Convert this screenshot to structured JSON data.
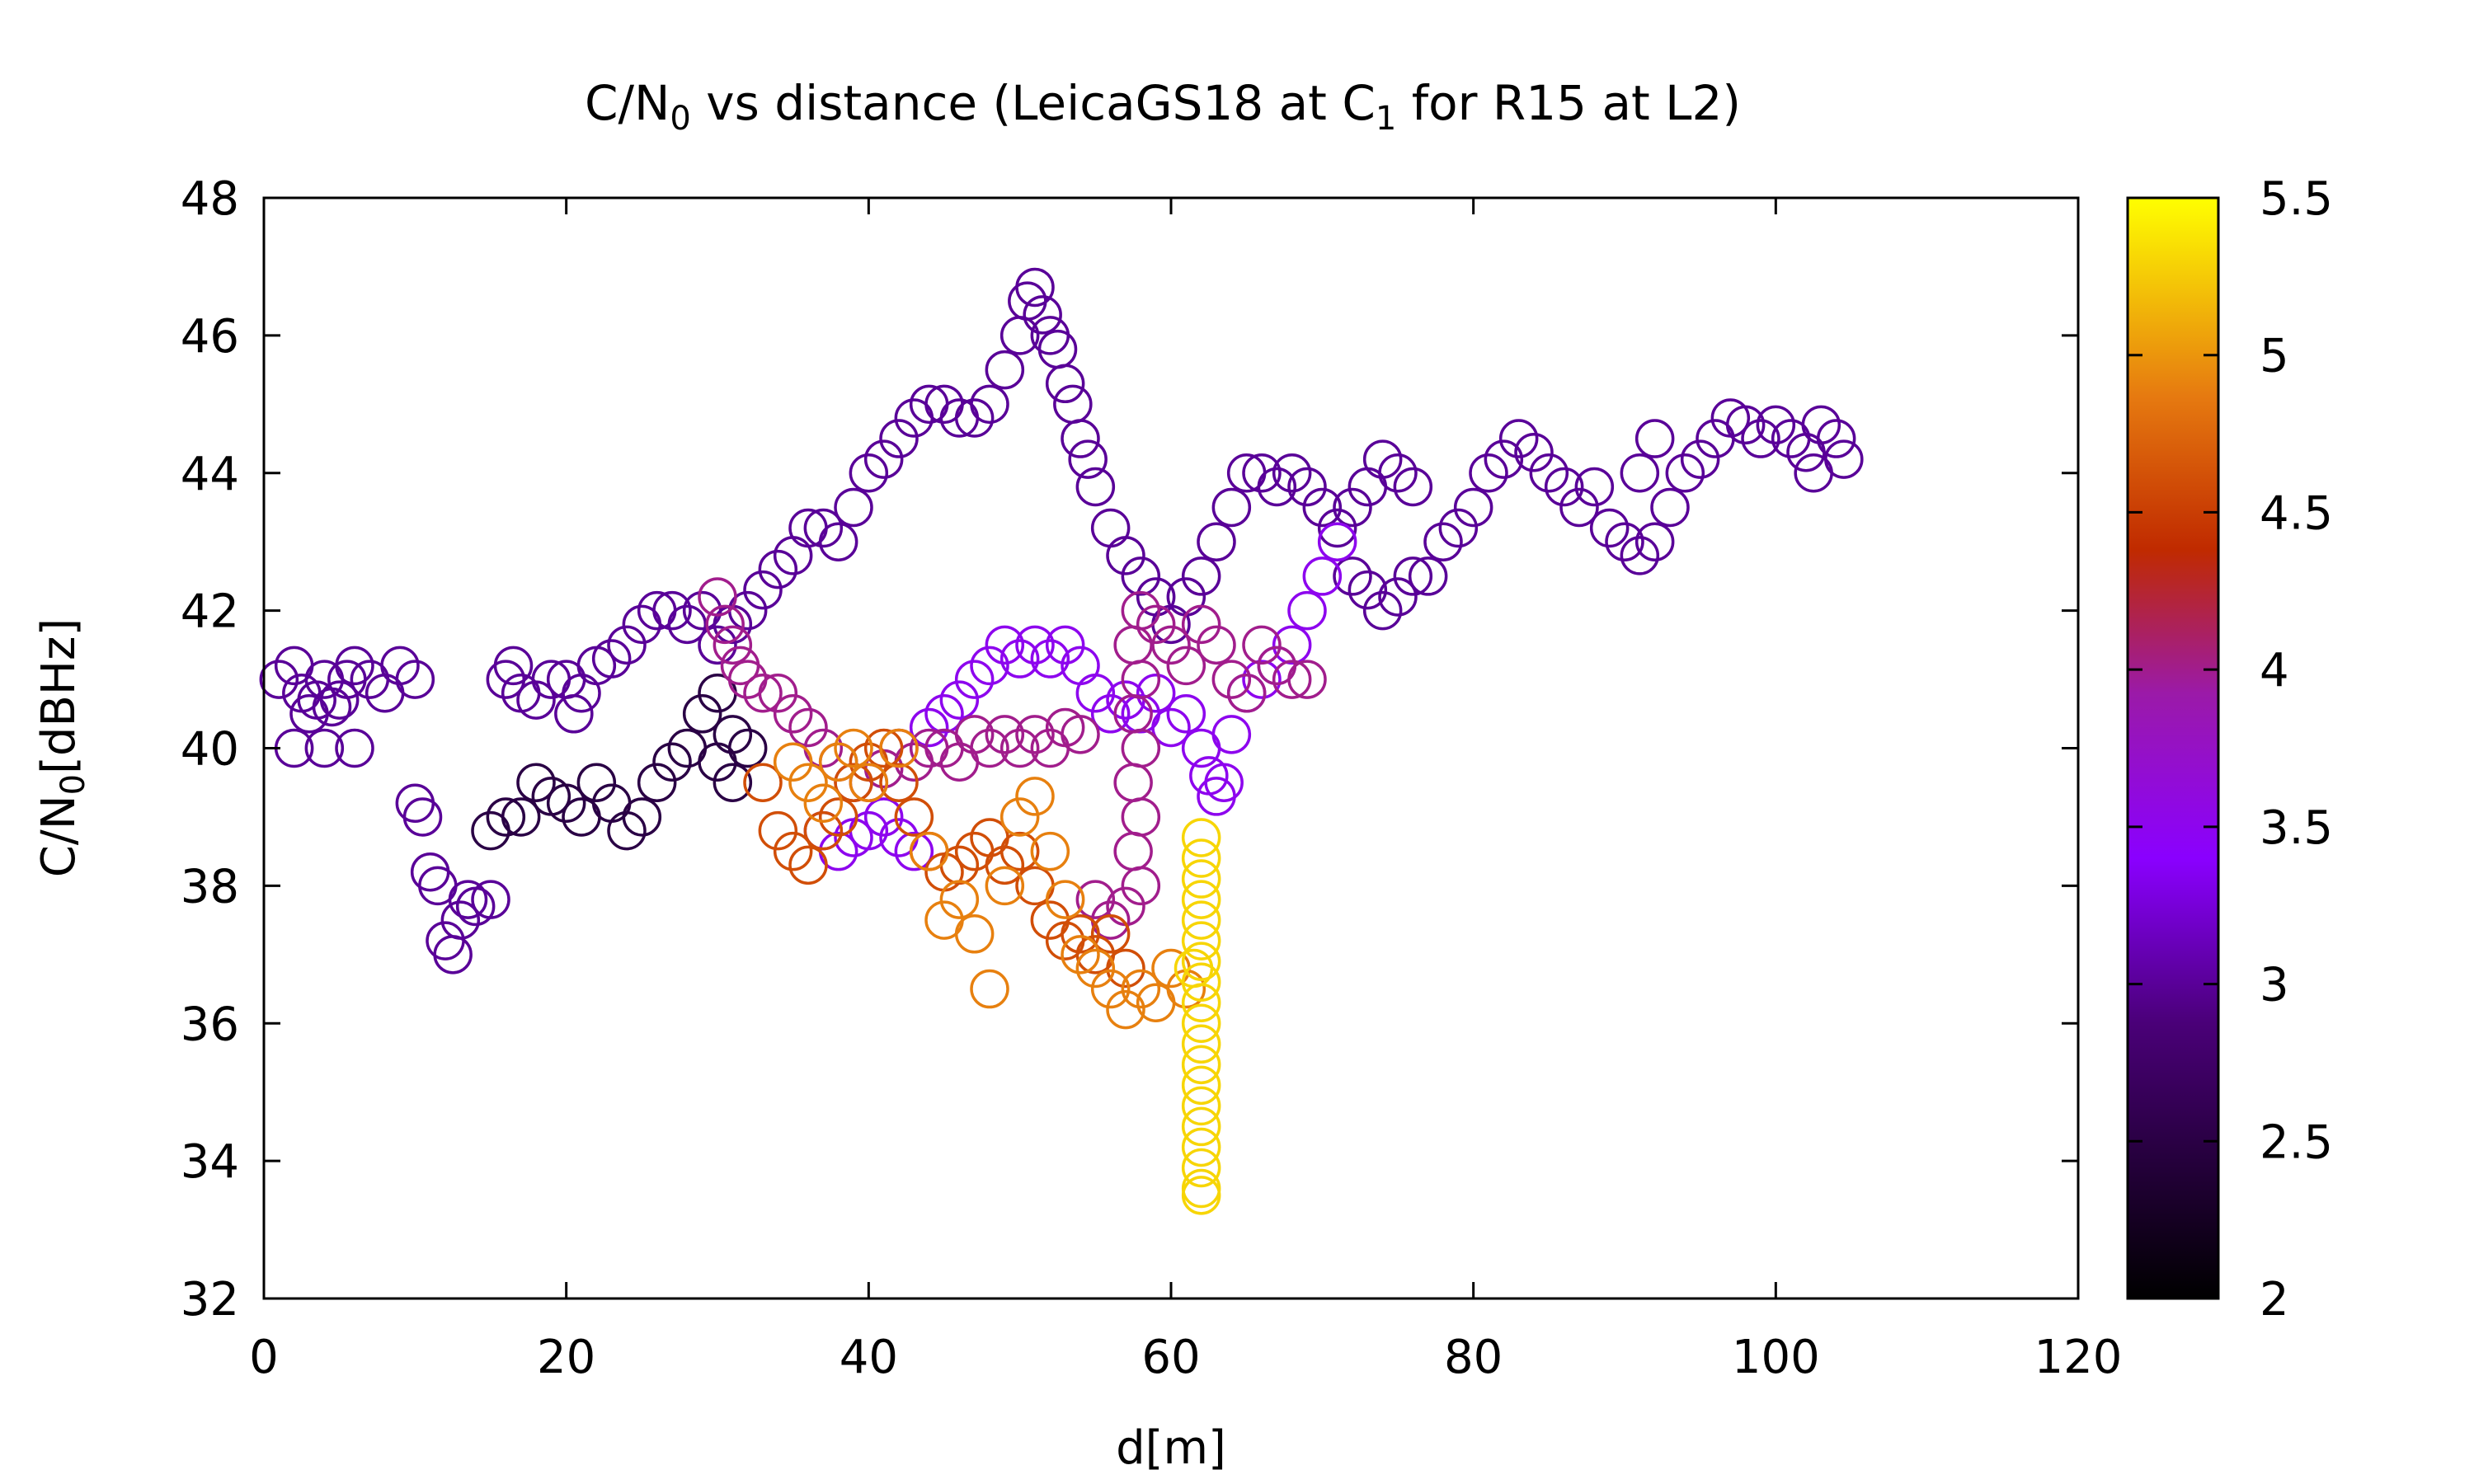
{
  "chart_data": {
    "type": "scatter",
    "title_parts": {
      "a": "C/N",
      "a_sub": "0",
      "b": " vs distance (LeicaGS18 at C",
      "b_sub": "1",
      "c": " for R15 at L2)"
    },
    "xlabel": "d[m]",
    "ylabel_parts": {
      "a": "C/N",
      "a_sub": "0",
      "b": "[dBHz]"
    },
    "xlim": [
      0,
      120
    ],
    "ylim": [
      32,
      48
    ],
    "xticks": [
      0,
      20,
      40,
      60,
      80,
      100,
      120
    ],
    "yticks": [
      32,
      34,
      36,
      38,
      40,
      42,
      44,
      46,
      48
    ],
    "marker": "open-circle",
    "colorbar": {
      "range": [
        2,
        5.5
      ],
      "ticks": [
        "2",
        "2.5",
        "3",
        "3.5",
        "4",
        "4.5",
        "5",
        "5.5"
      ],
      "colormap": [
        {
          "v": 0.0,
          "color": "#000000"
        },
        {
          "v": 0.25,
          "color": "#4a0078"
        },
        {
          "v": 0.4,
          "color": "#8a00ff"
        },
        {
          "v": 0.55,
          "color": "#9b1aa8"
        },
        {
          "v": 0.68,
          "color": "#c02a00"
        },
        {
          "v": 0.82,
          "color": "#e67a10"
        },
        {
          "v": 1.0,
          "color": "#ffff00"
        }
      ]
    },
    "series": [
      {
        "c": 3.0,
        "points": [
          [
            1,
            41
          ],
          [
            2,
            41.2
          ],
          [
            2.5,
            40.8
          ],
          [
            3,
            40.5
          ],
          [
            3.5,
            40.7
          ],
          [
            4,
            41
          ],
          [
            4.5,
            40.6
          ],
          [
            5,
            40.7
          ],
          [
            5.5,
            41
          ],
          [
            6,
            41.2
          ],
          [
            2,
            40
          ],
          [
            4,
            40
          ],
          [
            6,
            40
          ],
          [
            7,
            41
          ],
          [
            8,
            40.8
          ],
          [
            9,
            41.2
          ],
          [
            10,
            41
          ],
          [
            10,
            39.2
          ],
          [
            10.5,
            39
          ],
          [
            11,
            38.2
          ],
          [
            11.5,
            38
          ],
          [
            12,
            37.2
          ],
          [
            12.5,
            37
          ],
          [
            13,
            37.5
          ],
          [
            13.5,
            37.8
          ],
          [
            14,
            37.7
          ],
          [
            15,
            37.8
          ],
          [
            16,
            41
          ],
          [
            16.5,
            41.2
          ],
          [
            17,
            40.8
          ],
          [
            18,
            40.7
          ],
          [
            19,
            41
          ],
          [
            20,
            41
          ],
          [
            20.5,
            40.5
          ],
          [
            21,
            40.8
          ],
          [
            22,
            41.2
          ],
          [
            23,
            41.3
          ],
          [
            24,
            41.5
          ],
          [
            25,
            41.8
          ],
          [
            26,
            42
          ],
          [
            27,
            42
          ],
          [
            28,
            41.8
          ],
          [
            29,
            42
          ],
          [
            30,
            41.5
          ],
          [
            31,
            41.8
          ],
          [
            32,
            42
          ],
          [
            33,
            42.3
          ],
          [
            34,
            42.6
          ],
          [
            35,
            42.8
          ],
          [
            36,
            43.2
          ],
          [
            37,
            43.2
          ],
          [
            38,
            43
          ],
          [
            39,
            43.5
          ],
          [
            40,
            44
          ],
          [
            41,
            44.2
          ],
          [
            42,
            44.5
          ],
          [
            43,
            44.8
          ],
          [
            44,
            45
          ],
          [
            45,
            45
          ],
          [
            46,
            44.8
          ],
          [
            47,
            44.8
          ],
          [
            48,
            45
          ],
          [
            49,
            45.5
          ],
          [
            50,
            46
          ],
          [
            50.5,
            46.5
          ],
          [
            51,
            46.7
          ],
          [
            51.5,
            46.3
          ],
          [
            52,
            46
          ],
          [
            52.5,
            45.8
          ],
          [
            53,
            45.3
          ],
          [
            53.5,
            45
          ],
          [
            54,
            44.5
          ],
          [
            54.5,
            44.2
          ],
          [
            55,
            43.8
          ],
          [
            56,
            43.2
          ],
          [
            57,
            42.8
          ],
          [
            58,
            42.5
          ],
          [
            59,
            42.2
          ],
          [
            60,
            41.8
          ],
          [
            61,
            42.2
          ],
          [
            62,
            42.5
          ],
          [
            63,
            43
          ],
          [
            64,
            43.5
          ],
          [
            65,
            44
          ],
          [
            66,
            44
          ],
          [
            67,
            43.8
          ],
          [
            68,
            44
          ],
          [
            69,
            43.8
          ],
          [
            70,
            43.5
          ],
          [
            71,
            43.2
          ],
          [
            72,
            43.5
          ],
          [
            73,
            43.8
          ],
          [
            74,
            44.2
          ],
          [
            75,
            44
          ],
          [
            76,
            43.8
          ],
          [
            77,
            42.5
          ],
          [
            78,
            43
          ],
          [
            79,
            43.2
          ],
          [
            80,
            43.5
          ],
          [
            81,
            44
          ],
          [
            82,
            44.2
          ],
          [
            83,
            44.5
          ],
          [
            84,
            44.3
          ],
          [
            85,
            44
          ],
          [
            86,
            43.8
          ],
          [
            87,
            43.5
          ],
          [
            88,
            43.8
          ],
          [
            89,
            43.2
          ],
          [
            90,
            43
          ],
          [
            91,
            42.8
          ],
          [
            92,
            43
          ],
          [
            93,
            43.5
          ],
          [
            91,
            44
          ],
          [
            92,
            44.5
          ],
          [
            94,
            44
          ],
          [
            95,
            44.2
          ],
          [
            96,
            44.5
          ],
          [
            97,
            44.8
          ],
          [
            98,
            44.7
          ],
          [
            99,
            44.5
          ],
          [
            100,
            44.7
          ],
          [
            101,
            44.5
          ],
          [
            102,
            44.3
          ],
          [
            102.5,
            44
          ],
          [
            103,
            44.7
          ],
          [
            104,
            44.5
          ],
          [
            104.5,
            44.2
          ],
          [
            72,
            42.5
          ],
          [
            73,
            42.3
          ],
          [
            74,
            42
          ],
          [
            75,
            42.2
          ],
          [
            76,
            42.5
          ]
        ]
      },
      {
        "c": 2.5,
        "points": [
          [
            15,
            38.8
          ],
          [
            16,
            39
          ],
          [
            17,
            39
          ],
          [
            18,
            39.5
          ],
          [
            19,
            39.3
          ],
          [
            20,
            39.2
          ],
          [
            21,
            39
          ],
          [
            22,
            39.5
          ],
          [
            23,
            39.2
          ],
          [
            24,
            38.8
          ],
          [
            25,
            39
          ],
          [
            26,
            39.5
          ],
          [
            27,
            39.8
          ],
          [
            28,
            40
          ],
          [
            29,
            40.5
          ],
          [
            30,
            40.8
          ],
          [
            31,
            40.2
          ],
          [
            32,
            40
          ],
          [
            30,
            39.8
          ],
          [
            31,
            39.5
          ]
        ]
      },
      {
        "c": 3.5,
        "points": [
          [
            44,
            40.3
          ],
          [
            45,
            40.5
          ],
          [
            46,
            40.7
          ],
          [
            47,
            41
          ],
          [
            48,
            41.2
          ],
          [
            49,
            41.5
          ],
          [
            50,
            41.3
          ],
          [
            51,
            41.5
          ],
          [
            52,
            41.3
          ],
          [
            53,
            41.5
          ],
          [
            54,
            41.2
          ],
          [
            55,
            40.8
          ],
          [
            56,
            40.5
          ],
          [
            57,
            40.7
          ],
          [
            58,
            40.5
          ],
          [
            59,
            40.8
          ],
          [
            60,
            40.3
          ],
          [
            61,
            40.5
          ],
          [
            62,
            40
          ],
          [
            62.5,
            39.6
          ],
          [
            63,
            39.3
          ],
          [
            63.5,
            39.5
          ],
          [
            64,
            40.2
          ],
          [
            65,
            40.8
          ],
          [
            66,
            41
          ],
          [
            67,
            41.2
          ],
          [
            68,
            41.5
          ],
          [
            69,
            42
          ],
          [
            70,
            42.5
          ],
          [
            71,
            43
          ],
          [
            37,
            38.8
          ],
          [
            38,
            38.5
          ],
          [
            39,
            38.7
          ],
          [
            40,
            38.8
          ],
          [
            41,
            39
          ],
          [
            42,
            38.7
          ],
          [
            43,
            38.5
          ]
        ]
      },
      {
        "c": 4.0,
        "points": [
          [
            30,
            42.2
          ],
          [
            30.5,
            41.8
          ],
          [
            31,
            41.5
          ],
          [
            31.5,
            41.2
          ],
          [
            32,
            41
          ],
          [
            33,
            40.8
          ],
          [
            34,
            40.8
          ],
          [
            35,
            40.5
          ],
          [
            36,
            40.3
          ],
          [
            37,
            40
          ],
          [
            38,
            39.8
          ],
          [
            39,
            39.5
          ],
          [
            40,
            39.5
          ],
          [
            41,
            39.7
          ],
          [
            42,
            40
          ],
          [
            43,
            39.8
          ],
          [
            44,
            40
          ],
          [
            45,
            40
          ],
          [
            46,
            39.8
          ],
          [
            47,
            40.2
          ],
          [
            48,
            40
          ],
          [
            49,
            40.2
          ],
          [
            50,
            40
          ],
          [
            51,
            40.2
          ],
          [
            52,
            40
          ],
          [
            53,
            40.3
          ],
          [
            54,
            40.2
          ],
          [
            55,
            37.8
          ],
          [
            56,
            37.5
          ],
          [
            57,
            37.7
          ],
          [
            58,
            38
          ],
          [
            57.5,
            38.5
          ],
          [
            58,
            39
          ],
          [
            57.5,
            39.5
          ],
          [
            58,
            40
          ],
          [
            57.5,
            40.5
          ],
          [
            58,
            41
          ],
          [
            57.5,
            41.5
          ],
          [
            58,
            42
          ],
          [
            59,
            41.8
          ],
          [
            60,
            41.5
          ],
          [
            61,
            41.2
          ],
          [
            62,
            41.8
          ],
          [
            63,
            41.5
          ],
          [
            64,
            41
          ],
          [
            65,
            40.8
          ],
          [
            66,
            41.5
          ],
          [
            67,
            41.2
          ],
          [
            68,
            41
          ],
          [
            69,
            41
          ]
        ]
      },
      {
        "c": 4.6,
        "points": [
          [
            33,
            39.5
          ],
          [
            34,
            38.8
          ],
          [
            35,
            38.5
          ],
          [
            36,
            38.3
          ],
          [
            37,
            38.8
          ],
          [
            38,
            39
          ],
          [
            39,
            39.5
          ],
          [
            40,
            39.8
          ],
          [
            41,
            40
          ],
          [
            42,
            39.5
          ],
          [
            43,
            39
          ],
          [
            44,
            38.5
          ],
          [
            45,
            38.2
          ],
          [
            46,
            38.3
          ],
          [
            47,
            38.5
          ],
          [
            48,
            38.7
          ],
          [
            49,
            38.3
          ],
          [
            50,
            38.5
          ],
          [
            51,
            38
          ],
          [
            52,
            37.5
          ],
          [
            53,
            37.2
          ],
          [
            54,
            37.3
          ],
          [
            55,
            37
          ],
          [
            56,
            37.3
          ],
          [
            57,
            36.8
          ]
        ]
      },
      {
        "c": 4.9,
        "points": [
          [
            35,
            39.8
          ],
          [
            36,
            39.5
          ],
          [
            37,
            39.2
          ],
          [
            38,
            39.8
          ],
          [
            39,
            40
          ],
          [
            40,
            39.5
          ],
          [
            42,
            40
          ],
          [
            44,
            38.5
          ],
          [
            45,
            37.5
          ],
          [
            46,
            37.8
          ],
          [
            47,
            37.3
          ],
          [
            48,
            36.5
          ],
          [
            49,
            38
          ],
          [
            50,
            39
          ],
          [
            51,
            39.3
          ],
          [
            52,
            38.5
          ],
          [
            53,
            37.8
          ],
          [
            54,
            37
          ],
          [
            55,
            36.8
          ],
          [
            56,
            36.5
          ],
          [
            57,
            36.2
          ],
          [
            58,
            36.5
          ],
          [
            59,
            36.3
          ],
          [
            60,
            36.8
          ],
          [
            61,
            36.5
          ]
        ]
      },
      {
        "c": 5.3,
        "points": [
          [
            62,
            38.7
          ],
          [
            62,
            38.4
          ],
          [
            62,
            38.1
          ],
          [
            62,
            37.8
          ],
          [
            62,
            37.5
          ],
          [
            62,
            37.2
          ],
          [
            62,
            36.9
          ],
          [
            62,
            36.6
          ],
          [
            62,
            36.3
          ],
          [
            62,
            36
          ],
          [
            62,
            35.7
          ],
          [
            62,
            35.4
          ],
          [
            62,
            35.1
          ],
          [
            62,
            34.8
          ],
          [
            62,
            34.5
          ],
          [
            62,
            34.2
          ],
          [
            62,
            33.9
          ],
          [
            62,
            33.6
          ],
          [
            62,
            33.5
          ],
          [
            61.5,
            36.8
          ]
        ]
      }
    ]
  }
}
